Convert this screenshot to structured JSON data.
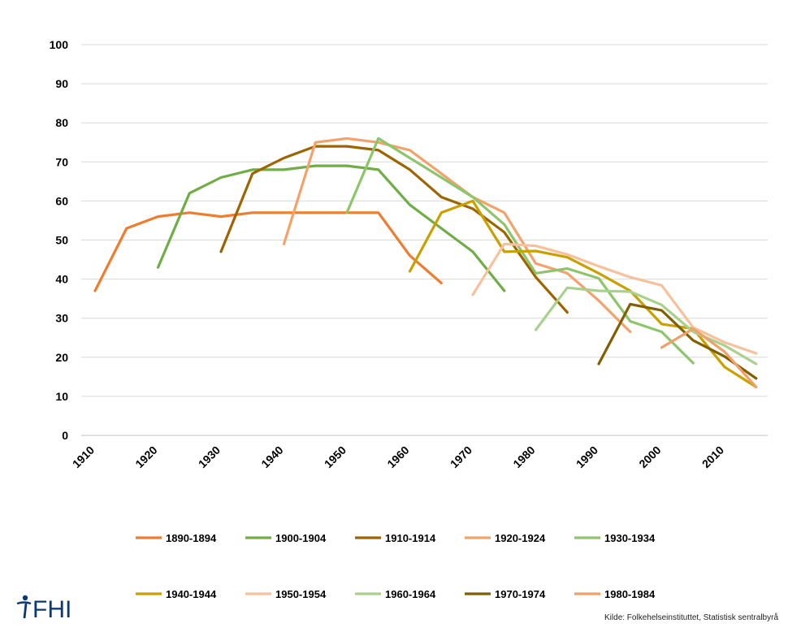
{
  "chart_data": {
    "type": "line",
    "title": "",
    "xlabel": "",
    "ylabel": "",
    "xlim": [
      1910,
      2015
    ],
    "ylim": [
      0,
      100
    ],
    "yticks": [
      0,
      10,
      20,
      30,
      40,
      50,
      60,
      70,
      80,
      90,
      100
    ],
    "xticks": [
      1910,
      1920,
      1930,
      1940,
      1950,
      1960,
      1970,
      1980,
      1990,
      2000,
      2010
    ],
    "grid": "horizontal",
    "legend_position": "bottom",
    "series": [
      {
        "name": "1890-1894",
        "color": "#ED7D31",
        "x": [
          1910,
          1915,
          1920,
          1925,
          1930,
          1935,
          1940,
          1945,
          1950,
          1955,
          1960,
          1965
        ],
        "y": [
          37,
          53,
          56,
          57,
          56,
          57,
          57,
          57,
          57,
          57,
          46,
          39
        ]
      },
      {
        "name": "1900-1904",
        "color": "#70AD47",
        "x": [
          1920,
          1925,
          1930,
          1935,
          1940,
          1945,
          1950,
          1955,
          1960,
          1965,
          1970,
          1975
        ],
        "y": [
          43,
          62,
          66,
          68,
          68,
          69,
          69,
          68,
          59,
          53,
          47,
          37
        ]
      },
      {
        "name": "1910-1914",
        "color": "#9C6500",
        "x": [
          1930,
          1935,
          1940,
          1945,
          1950,
          1955,
          1960,
          1965,
          1970,
          1975,
          1980,
          1985
        ],
        "y": [
          47,
          67,
          71,
          74,
          74,
          73,
          68,
          61,
          58,
          52,
          40.5,
          31.5
        ]
      },
      {
        "name": "1920-1924",
        "color": "#F4A26B",
        "x": [
          1940,
          1945,
          1950,
          1955,
          1960,
          1965,
          1970,
          1975,
          1980,
          1985,
          1990,
          1995
        ],
        "y": [
          49,
          75,
          76,
          75,
          73,
          67,
          61,
          57,
          44,
          41.5,
          34.5,
          26.5
        ]
      },
      {
        "name": "1930-1934",
        "color": "#8DC56D",
        "x": [
          1950,
          1955,
          1960,
          1965,
          1970,
          1975,
          1980,
          1985,
          1990,
          1995,
          2000,
          2005
        ],
        "y": [
          57,
          76,
          71,
          66,
          61,
          54,
          41.5,
          42.7,
          40.2,
          29.2,
          26.5,
          18.5
        ]
      },
      {
        "name": "1940-1944",
        "color": "#C9A000",
        "x": [
          1960,
          1965,
          1970,
          1975,
          1980,
          1985,
          1990,
          1995,
          2000,
          2005,
          2010,
          2015
        ],
        "y": [
          42,
          57,
          60,
          47,
          47.2,
          45.6,
          41.5,
          37,
          28.5,
          27.3,
          17.5,
          12.4
        ]
      },
      {
        "name": "1950-1954",
        "color": "#F6C19B",
        "x": [
          1970,
          1975,
          1980,
          1985,
          1990,
          1995,
          2000,
          2005,
          2010,
          2015
        ],
        "y": [
          36,
          49,
          48.5,
          46.3,
          43.3,
          40.5,
          38.4,
          27.6,
          23.8,
          21
        ]
      },
      {
        "name": "1960-1964",
        "color": "#A9D18E",
        "x": [
          1980,
          1985,
          1990,
          1995,
          2000,
          2005,
          2010,
          2015
        ],
        "y": [
          27,
          37.8,
          37,
          36.8,
          33.4,
          26.5,
          23,
          18.3
        ]
      },
      {
        "name": "1970-1974",
        "color": "#7F5F00",
        "x": [
          1990,
          1995,
          2000,
          2005,
          2010,
          2015
        ],
        "y": [
          18.3,
          33.6,
          32,
          24.3,
          20.2,
          14.6
        ]
      },
      {
        "name": "1980-1984",
        "color": "#F0A06A",
        "x": [
          2000,
          2005,
          2010,
          2015
        ],
        "y": [
          22.5,
          27.3,
          21.4,
          12.4
        ]
      }
    ]
  },
  "source": "Kilde: Folkehelseinstituttet, Statistisk sentralbyrå",
  "logo": {
    "text": "FHI",
    "icon": "fhi-figure-icon",
    "color": "#0b3a73"
  }
}
